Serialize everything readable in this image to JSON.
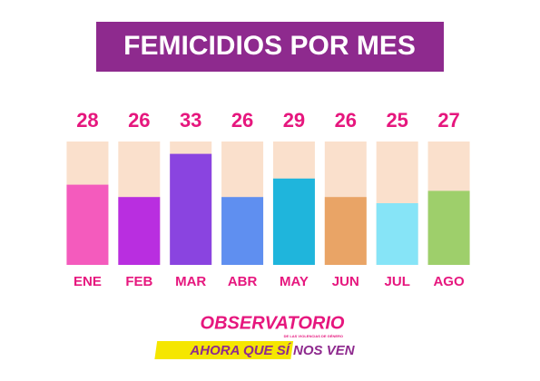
{
  "chart_data": {
    "type": "bar",
    "title": "FEMICIDIOS POR MES",
    "categories": [
      "ENE",
      "FEB",
      "MAR",
      "ABR",
      "MAY",
      "JUN",
      "JUL",
      "AGO"
    ],
    "values": [
      28,
      26,
      33,
      26,
      29,
      26,
      25,
      27
    ],
    "colors": [
      "#f45bbd",
      "#b92ee0",
      "#8a44e0",
      "#5f8ff0",
      "#1fb5dc",
      "#e9a466",
      "#86e4f7",
      "#9ecf6b"
    ],
    "track_color": "#fae0cc",
    "ylim": [
      15,
      35
    ]
  },
  "logo": {
    "name": "OBSERVATORIO",
    "subtitle": "DE LAS VIOLENCIAS DE GÉNERO",
    "slogan": "AHORA QUE SÍ NOS VEN"
  }
}
